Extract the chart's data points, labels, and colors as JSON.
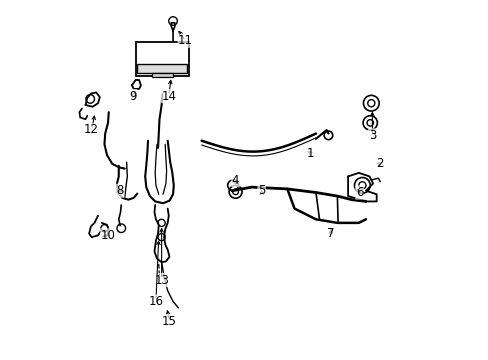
{
  "background_color": "#ffffff",
  "line_color": "#000000",
  "line_width": 1.2,
  "fig_width": 4.89,
  "fig_height": 3.6,
  "dpi": 100,
  "label_fontsize": 8.5
}
